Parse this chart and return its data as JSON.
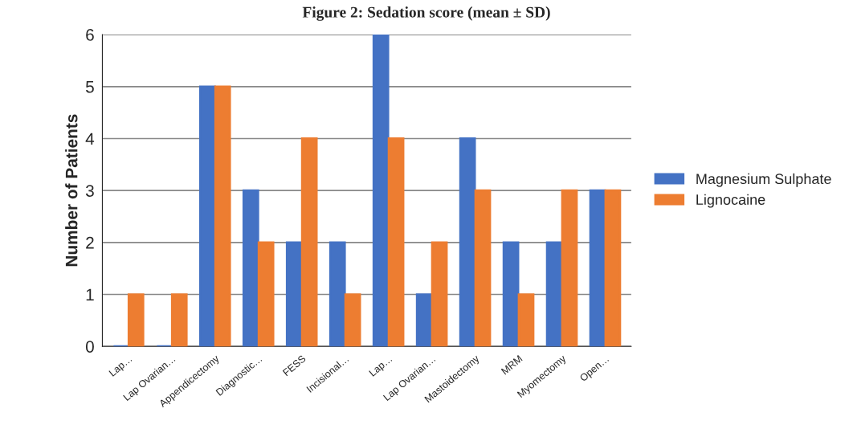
{
  "chart_data": {
    "type": "bar",
    "title": "Figure 2: Sedation score (mean ± SD)",
    "ylabel": "Number of Patients",
    "categories": [
      "Lap…",
      "Lap Ovarian…",
      "Appendicectomy",
      "Diagnostic…",
      "FESS",
      "Incisional…",
      "Lap…",
      "Lap Ovarian…",
      "Mastoidectomy",
      "MRM",
      "Myomectomy",
      "Open…"
    ],
    "series": [
      {
        "name": "Magnesium Sulphate",
        "color": "#4472c4",
        "values": [
          0,
          0,
          5,
          3,
          2,
          2,
          6,
          1,
          4,
          2,
          2,
          3
        ]
      },
      {
        "name": "Lignocaine",
        "color": "#ed7d31",
        "values": [
          1,
          1,
          5,
          2,
          4,
          1,
          4,
          2,
          3,
          1,
          3,
          3
        ]
      }
    ],
    "ylim": [
      0,
      6
    ],
    "yticks": [
      0,
      1,
      2,
      3,
      4,
      5,
      6
    ],
    "grid": "y",
    "legend": "right"
  }
}
